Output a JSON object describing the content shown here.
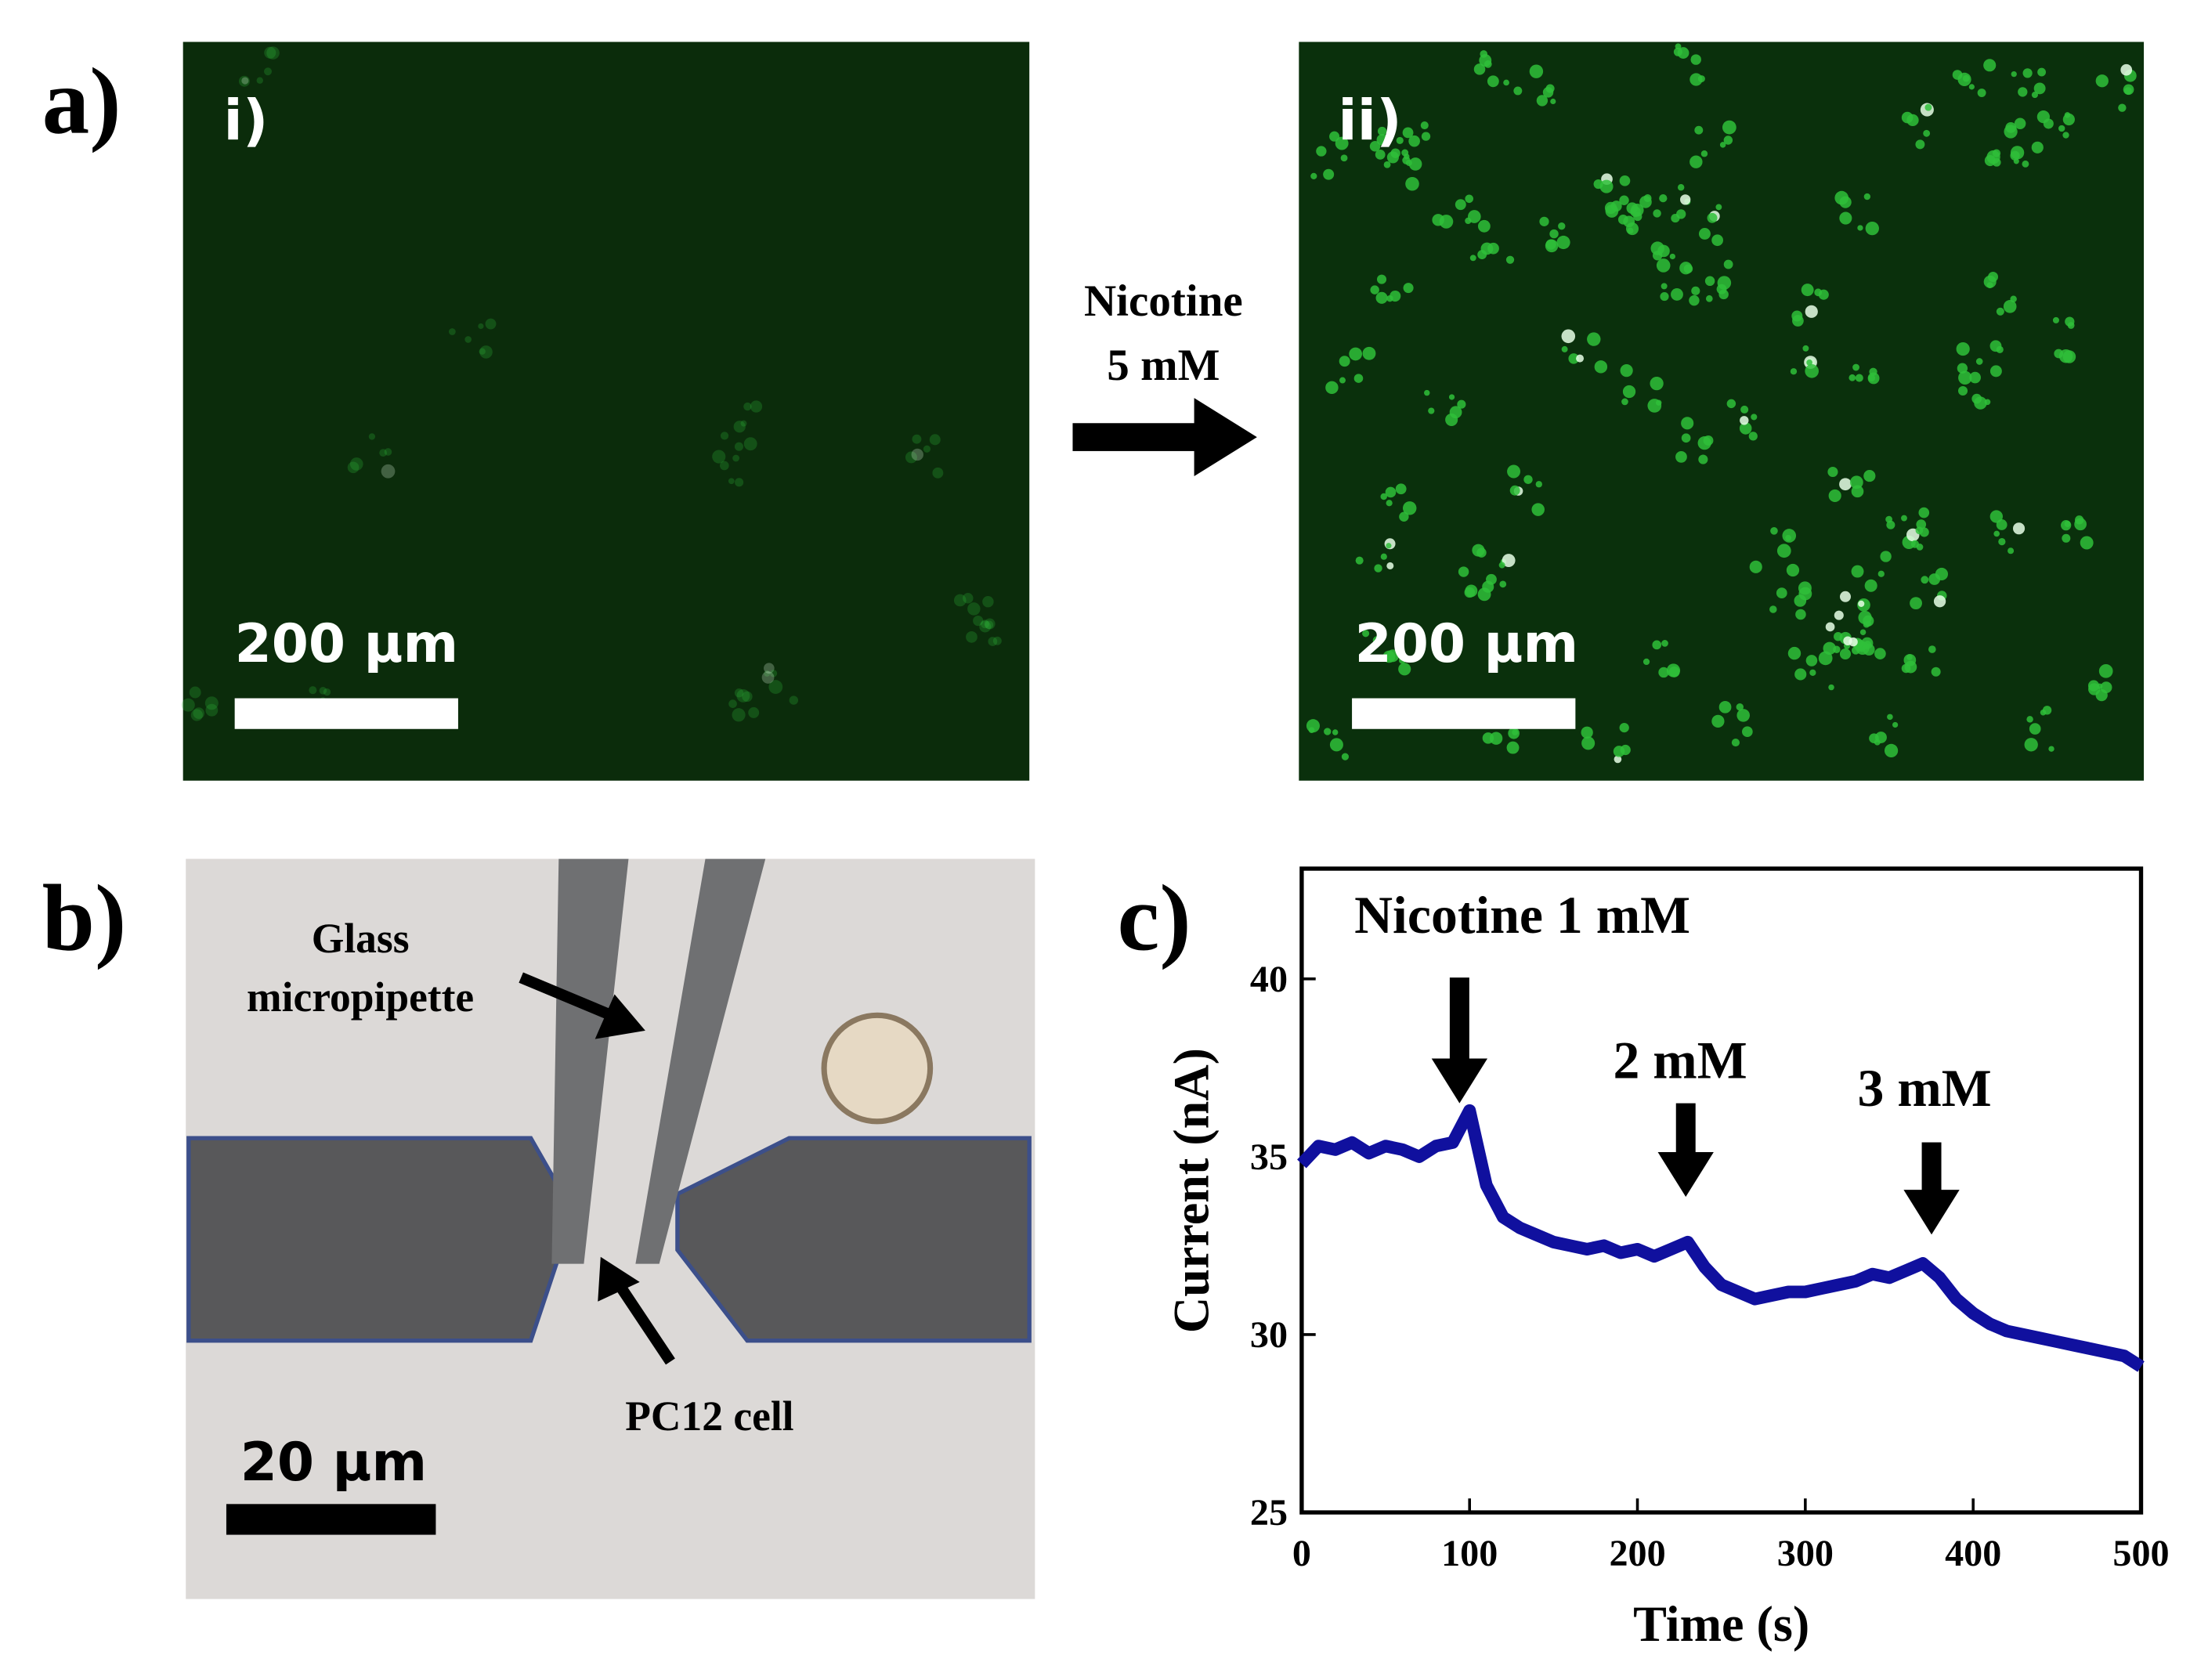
{
  "panels": {
    "a": {
      "label": "a)",
      "images": [
        {
          "label": "i)",
          "scale_bar": "200 µm"
        },
        {
          "label": "ii)",
          "scale_bar": "200 µm"
        }
      ],
      "arrow_text": [
        "Nicotine",
        "5 mM"
      ]
    },
    "b": {
      "label": "b)",
      "annotations": [
        "Glass",
        "micropipette",
        "PC12 cell"
      ],
      "scale_bar": "20 µm"
    },
    "c": {
      "label": "c)"
    }
  },
  "chart_data": {
    "type": "line",
    "x_label": "Time (s)",
    "y_label": "Current (nA)",
    "annotations": [
      "Nicotine 1 mM",
      "2 mM",
      "3 mM"
    ],
    "x": [
      0,
      10,
      20,
      30,
      40,
      50,
      60,
      70,
      80,
      90,
      100,
      110,
      120,
      130,
      140,
      150,
      160,
      170,
      180,
      190,
      200,
      210,
      220,
      230,
      240,
      250,
      260,
      270,
      280,
      290,
      300,
      310,
      320,
      330,
      340,
      350,
      360,
      370,
      380,
      390,
      400,
      410,
      420,
      430,
      440,
      450,
      460,
      470,
      480,
      490,
      500
    ],
    "series": [
      {
        "color": "#10109e",
        "values": [
          34.8,
          35.3,
          35.2,
          35.4,
          35.1,
          35.3,
          35.2,
          35.0,
          35.3,
          35.4,
          36.3,
          34.2,
          33.3,
          33.0,
          32.8,
          32.6,
          32.5,
          32.4,
          32.5,
          32.3,
          32.4,
          32.2,
          32.4,
          32.6,
          31.9,
          31.4,
          31.2,
          31.0,
          31.1,
          31.2,
          31.2,
          31.3,
          31.4,
          31.5,
          31.7,
          31.6,
          31.8,
          32.0,
          31.6,
          31.0,
          30.6,
          30.3,
          30.1,
          30.0,
          29.9,
          29.8,
          29.7,
          29.6,
          29.5,
          29.4,
          29.1
        ]
      }
    ],
    "xlim": [
      0,
      500
    ],
    "xticks": [
      0,
      100,
      200,
      300,
      400,
      500
    ],
    "ylim": [
      25,
      43.1
    ],
    "yticks": [
      25,
      30,
      35,
      40
    ],
    "grid": false
  }
}
